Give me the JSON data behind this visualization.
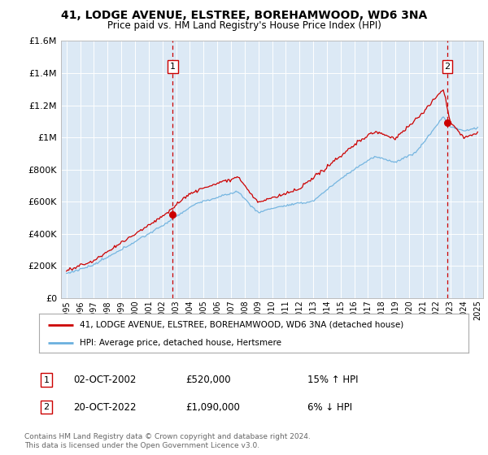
{
  "title": "41, LODGE AVENUE, ELSTREE, BOREHAMWOOD, WD6 3NA",
  "subtitle": "Price paid vs. HM Land Registry's House Price Index (HPI)",
  "background_color": "#dce9f5",
  "hpi_color": "#6ab0de",
  "price_color": "#cc0000",
  "annotation_color": "#cc0000",
  "ylim": [
    0,
    1600000
  ],
  "yticks": [
    0,
    200000,
    400000,
    600000,
    800000,
    1000000,
    1200000,
    1400000,
    1600000
  ],
  "ytick_labels": [
    "£0",
    "£200K",
    "£400K",
    "£600K",
    "£800K",
    "£1M",
    "£1.2M",
    "£1.4M",
    "£1.6M"
  ],
  "sale1_year": 2002.75,
  "sale1_price": 520000,
  "sale1_label": "1",
  "sale2_year": 2022.79,
  "sale2_price": 1090000,
  "sale2_label": "2",
  "legend_line1": "41, LODGE AVENUE, ELSTREE, BOREHAMWOOD, WD6 3NA (detached house)",
  "legend_line2": "HPI: Average price, detached house, Hertsmere",
  "note1_date": "02-OCT-2002",
  "note1_price": "£520,000",
  "note1_hpi": "15% ↑ HPI",
  "note2_date": "20-OCT-2022",
  "note2_price": "£1,090,000",
  "note2_hpi": "6% ↓ HPI",
  "copyright": "Contains HM Land Registry data © Crown copyright and database right 2024.\nThis data is licensed under the Open Government Licence v3.0."
}
